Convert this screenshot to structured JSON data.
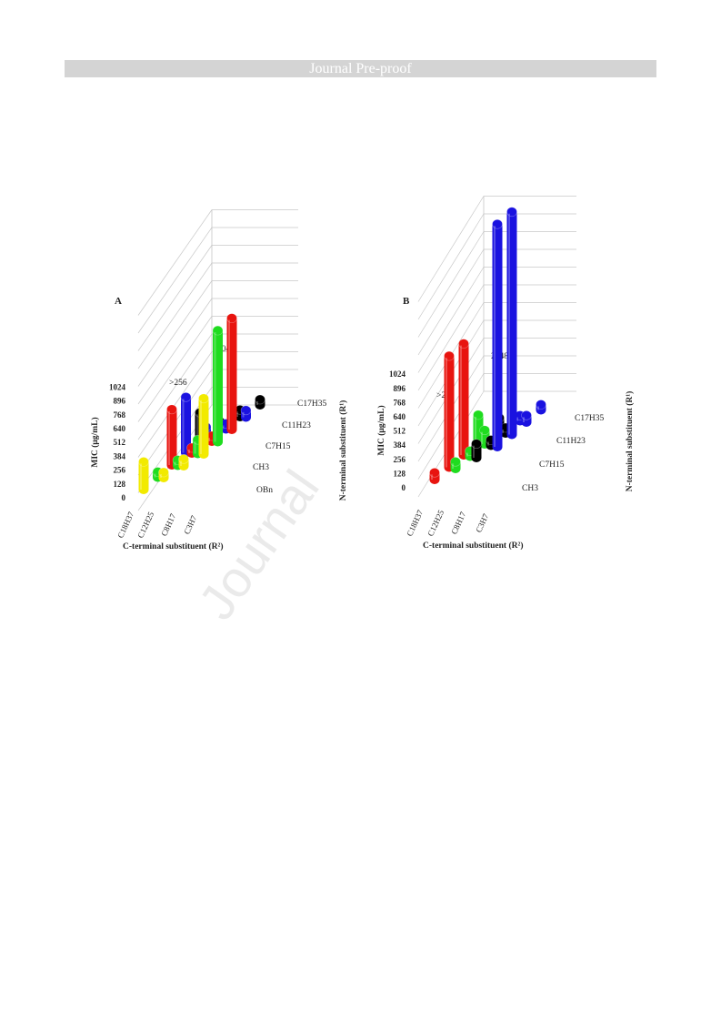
{
  "header": {
    "title": "Journal Pre-proof"
  },
  "watermark": {
    "text": "Journal"
  },
  "colors": {
    "C18H37": "#f2ea00",
    "C12H25": "#1fdc1f",
    "C8H17": "#e8140f",
    "C3H7": "#1a12e0",
    "black": "#000000"
  },
  "chart_data": [
    {
      "type": "bar3d",
      "title": "A",
      "ylabel": "MIC (μg/mL)",
      "xlabel": "C-terminal substituent (R²)",
      "zlabel": "N-terminal substituent (R¹)",
      "yticks": [
        "1024",
        "896",
        "768",
        "640",
        "512",
        "384",
        "256",
        "128",
        "0"
      ],
      "ylim": [
        0,
        2048
      ],
      "categories_x": [
        "C18H37",
        "C12H25",
        "C8H17",
        "C3H7"
      ],
      "categories_z": [
        "OBn",
        "CH3",
        "C7H15",
        "C11H23",
        "C17H35"
      ],
      "annotations": [
        ">256",
        "2048"
      ],
      "values": [
        {
          "z": "OBn",
          "x": "C18H37",
          "value": 256,
          "color": "#f2ea00"
        },
        {
          "z": "OBn",
          "x": "C12H25",
          "value": 16,
          "color": "#f2ea00"
        },
        {
          "z": "OBn",
          "x": "C8H17",
          "value": 64,
          "color": "#f2ea00"
        },
        {
          "z": "OBn",
          "x": "C3H7",
          "value": 512,
          "color": "#f2ea00"
        },
        {
          "z": "CH3",
          "x": "C18H37",
          "value": 32,
          "color": "#1fdc1f"
        },
        {
          "z": "CH3",
          "x": "C12H25",
          "value": 32,
          "color": "#1fdc1f"
        },
        {
          "z": "CH3",
          "x": "C8H17",
          "value": 128,
          "color": "#1fdc1f"
        },
        {
          "z": "CH3",
          "x": "C3H7",
          "value": 1024,
          "color": "#1fdc1f"
        },
        {
          "z": "C7H15",
          "x": "C18H37",
          "value": 512,
          "color": "#e8140f"
        },
        {
          "z": "C7H15",
          "x": "C12H25",
          "value": 32,
          "color": "#e8140f"
        },
        {
          "z": "C7H15",
          "x": "C8H17",
          "value": 16,
          "color": "#e8140f"
        },
        {
          "z": "C7H15",
          "x": "C3H7",
          "value": 1024,
          "color": "#e8140f"
        },
        {
          "z": "C11H23",
          "x": "C18H37",
          "value": 512,
          "color": "#1a12e0"
        },
        {
          "z": "C11H23",
          "x": "C12H25",
          "value": 128,
          "color": "#1a12e0"
        },
        {
          "z": "C11H23",
          "x": "C8H17",
          "value": 32,
          "color": "#1a12e0"
        },
        {
          "z": "C11H23",
          "x": "C3H7",
          "value": 64,
          "color": "#1a12e0"
        },
        {
          "z": "C17H35",
          "x": "C18H37",
          "value": 256,
          "color": "#000000"
        },
        {
          "z": "C17H35",
          "x": "C12H25",
          "value": 64,
          "color": "#000000"
        },
        {
          "z": "C17H35",
          "x": "C8H17",
          "value": 64,
          "color": "#000000"
        },
        {
          "z": "C17H35",
          "x": "C3H7",
          "value": 32,
          "color": "#000000"
        }
      ]
    },
    {
      "type": "bar3d",
      "title": "B",
      "ylabel": "MIC (μg/mL)",
      "xlabel": "C-terminal substituent (R²)",
      "zlabel": "N-terminal substituent (R¹)",
      "yticks": [
        "1024",
        "896",
        "768",
        "640",
        "512",
        "384",
        "256",
        "128",
        "0"
      ],
      "ylim": [
        0,
        2048
      ],
      "categories_x": [
        "C18H37",
        "C12H25",
        "C8H17",
        "C3H7"
      ],
      "categories_z": [
        "CH3",
        "C7H15",
        "C11H23",
        "C17H35"
      ],
      "annotations": [
        ">256",
        "2048"
      ],
      "values": [
        {
          "z": "CH3",
          "x": "C18H37",
          "value": 64,
          "color": "#e8140f"
        },
        {
          "z": "CH3",
          "x": "C12H25",
          "value": 64,
          "color": "#1fdc1f"
        },
        {
          "z": "CH3",
          "x": "C8H17",
          "value": 128,
          "color": "#000000"
        },
        {
          "z": "CH3",
          "x": "C3H7",
          "value": 2048,
          "color": "#1a12e0"
        },
        {
          "z": "C7H15",
          "x": "C18H37",
          "value": 1024,
          "color": "#e8140f"
        },
        {
          "z": "C7H15",
          "x": "C12H25",
          "value": 32,
          "color": "#1fdc1f"
        },
        {
          "z": "C7H15",
          "x": "C8H17",
          "value": 32,
          "color": "#000000"
        },
        {
          "z": "C7H15",
          "x": "C3H7",
          "value": 2048,
          "color": "#1a12e0"
        },
        {
          "z": "C11H23",
          "x": "C18H37",
          "value": 1024,
          "color": "#e8140f"
        },
        {
          "z": "C11H23",
          "x": "C12H25",
          "value": 128,
          "color": "#1fdc1f"
        },
        {
          "z": "C11H23",
          "x": "C8H17",
          "value": 32,
          "color": "#000000"
        },
        {
          "z": "C11H23",
          "x": "C3H7",
          "value": 64,
          "color": "#1a12e0"
        },
        {
          "z": "C17H35",
          "x": "C18H37",
          "value": 256,
          "color": "#1fdc1f"
        },
        {
          "z": "C17H35",
          "x": "C12H25",
          "value": 128,
          "color": "#000000"
        },
        {
          "z": "C17H35",
          "x": "C8H17",
          "value": 32,
          "color": "#1a12e0"
        },
        {
          "z": "C17H35",
          "x": "C3H7",
          "value": 32,
          "color": "#1a12e0"
        }
      ]
    }
  ]
}
